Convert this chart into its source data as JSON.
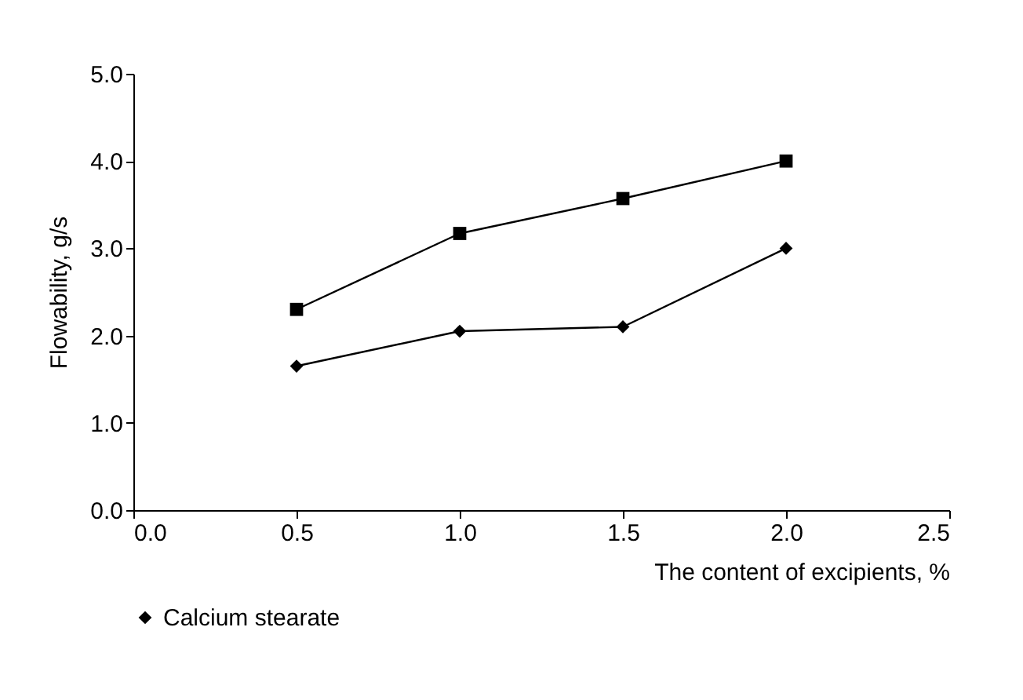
{
  "chart_data": {
    "type": "line",
    "xlabel": "The content of excipients, %",
    "ylabel": "Flowability, g/s",
    "x": [
      0.5,
      1.0,
      1.5,
      2.0
    ],
    "series": [
      {
        "name": "Calcium stearate",
        "color": "#000000",
        "marker": "diamond",
        "values": [
          1.65,
          2.05,
          2.1,
          3.0
        ]
      },
      {
        "color": "#000000",
        "marker": "square",
        "values": [
          2.3,
          3.17,
          3.57,
          4.0
        ]
      }
    ],
    "xlim": [
      0,
      2.5
    ],
    "xticks": [
      {
        "value": 0,
        "label": "0.0"
      },
      0.5,
      {
        "value": 1,
        "label": "1.0"
      },
      1.5,
      {
        "value": 2,
        "label": "2.0"
      },
      2.5
    ],
    "ylim": [
      0,
      5
    ],
    "yticks": [
      {
        "value": 0,
        "label": "0.0"
      },
      {
        "value": 1,
        "label": "1.0"
      },
      {
        "value": 2,
        "label": "2.0"
      },
      {
        "value": 3,
        "label": "3.0"
      },
      {
        "value": 4,
        "label": "4.0"
      },
      {
        "value": 5,
        "label": "5.0"
      }
    ],
    "grid": false,
    "legend": "bottom",
    "line_style": "solid"
  }
}
